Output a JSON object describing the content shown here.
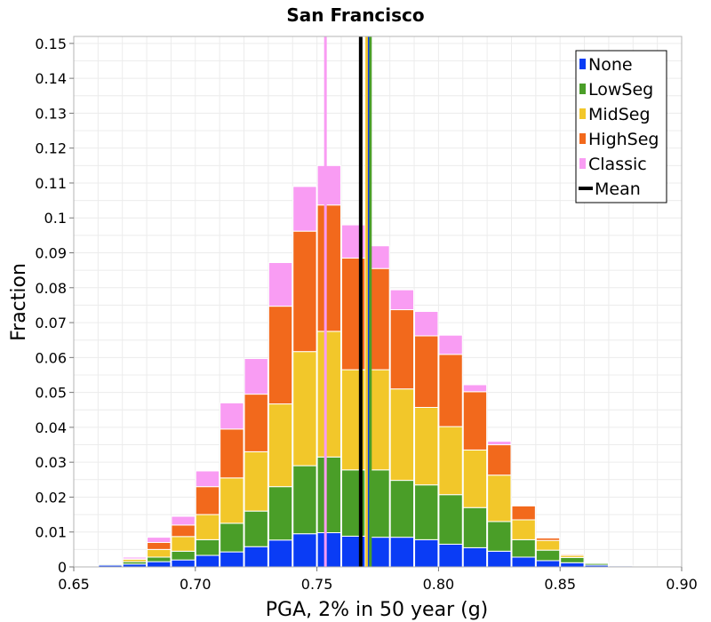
{
  "chart_data": {
    "type": "bar",
    "stacked": true,
    "title": "San Francisco",
    "xlabel": "PGA, 2% in 50 year (g)",
    "ylabel": "Fraction",
    "xlim": [
      0.65,
      0.9
    ],
    "ylim": [
      0,
      0.152
    ],
    "bin_width": 0.01,
    "x_ticks": [
      0.65,
      0.7,
      0.75,
      0.8,
      0.85,
      0.9
    ],
    "x_tick_labels": [
      "0.65",
      "0.70",
      "0.75",
      "0.80",
      "0.85",
      "0.90"
    ],
    "y_ticks": [
      0,
      0.01,
      0.02,
      0.03,
      0.04,
      0.05,
      0.06,
      0.07,
      0.08,
      0.09,
      0.1,
      0.11,
      0.12,
      0.13,
      0.14,
      0.15
    ],
    "y_tick_labels": [
      "0",
      "0.01",
      "0.02",
      "0.03",
      "0.04",
      "0.05",
      "0.06",
      "0.07",
      "0.08",
      "0.09",
      "0.1",
      "0.11",
      "0.12",
      "0.13",
      "0.14",
      "0.15"
    ],
    "grid": true,
    "legend_position": "top-right",
    "bin_centers": [
      0.655,
      0.665,
      0.675,
      0.685,
      0.695,
      0.705,
      0.715,
      0.725,
      0.735,
      0.745,
      0.755,
      0.765,
      0.775,
      0.785,
      0.795,
      0.805,
      0.815,
      0.825,
      0.835,
      0.845,
      0.855,
      0.865,
      0.875,
      0.885,
      0.895
    ],
    "series": [
      {
        "name": "None",
        "color": "#0a3cf5",
        "values": [
          0.0002,
          0.0005,
          0.0008,
          0.0015,
          0.002,
          0.0033,
          0.0043,
          0.0058,
          0.0077,
          0.0095,
          0.0098,
          0.0088,
          0.0085,
          0.0085,
          0.0078,
          0.0065,
          0.0055,
          0.0045,
          0.0028,
          0.0018,
          0.0012,
          0.0005,
          0.0003,
          0.0001,
          0.0001
        ]
      },
      {
        "name": "LowSeg",
        "color": "#4a9e28",
        "values": [
          0.0002,
          0.0003,
          0.0007,
          0.0013,
          0.0025,
          0.0045,
          0.0082,
          0.0102,
          0.0153,
          0.0195,
          0.0217,
          0.019,
          0.0193,
          0.0163,
          0.0157,
          0.0142,
          0.0115,
          0.0085,
          0.005,
          0.003,
          0.0015,
          0.0005,
          0.0002,
          0.0001,
          0
        ]
      },
      {
        "name": "MidSeg",
        "color": "#f2c72a",
        "values": [
          0,
          0.0001,
          0.0007,
          0.0022,
          0.0042,
          0.0072,
          0.013,
          0.017,
          0.0237,
          0.0327,
          0.036,
          0.0287,
          0.0287,
          0.0262,
          0.0222,
          0.0195,
          0.0165,
          0.0133,
          0.0057,
          0.0028,
          0.0006,
          0.0002,
          0,
          0,
          0
        ]
      },
      {
        "name": "HighSeg",
        "color": "#f2691c",
        "values": [
          0,
          0,
          0.0001,
          0.002,
          0.0033,
          0.008,
          0.014,
          0.0165,
          0.028,
          0.0345,
          0.0362,
          0.032,
          0.029,
          0.0227,
          0.0205,
          0.0207,
          0.0167,
          0.0087,
          0.004,
          0.0007,
          0.0003,
          0.0001,
          0,
          0,
          0
        ]
      },
      {
        "name": "Classic",
        "color": "#f99cf3",
        "values": [
          0,
          0,
          0.0005,
          0.0015,
          0.0025,
          0.0045,
          0.0075,
          0.0102,
          0.0125,
          0.0128,
          0.0113,
          0.0095,
          0.0065,
          0.0057,
          0.007,
          0.0055,
          0.002,
          0.001,
          0.0002,
          0.0001,
          0,
          0,
          0,
          0,
          0
        ]
      }
    ],
    "vertical_lines": [
      {
        "name": "Classic",
        "x": 0.7535,
        "color": "#f99cf3"
      },
      {
        "name": "HighSeg",
        "x": 0.768,
        "color": "#f2691c"
      },
      {
        "name": "MidSeg",
        "x": 0.7705,
        "color": "#f2c72a"
      },
      {
        "name": "None",
        "x": 0.7715,
        "color": "#0a3cf5"
      },
      {
        "name": "LowSeg",
        "x": 0.772,
        "color": "#4a9e28"
      },
      {
        "name": "Mean",
        "x": 0.768,
        "color": "#000000",
        "thick": true
      }
    ],
    "legend": [
      {
        "label": "None",
        "color": "#0a3cf5",
        "kind": "swatch"
      },
      {
        "label": "LowSeg",
        "color": "#4a9e28",
        "kind": "swatch"
      },
      {
        "label": "MidSeg",
        "color": "#f2c72a",
        "kind": "swatch"
      },
      {
        "label": "HighSeg",
        "color": "#f2691c",
        "kind": "swatch"
      },
      {
        "label": "Classic",
        "color": "#f99cf3",
        "kind": "swatch"
      },
      {
        "label": "Mean",
        "color": "#000000",
        "kind": "line"
      }
    ]
  }
}
